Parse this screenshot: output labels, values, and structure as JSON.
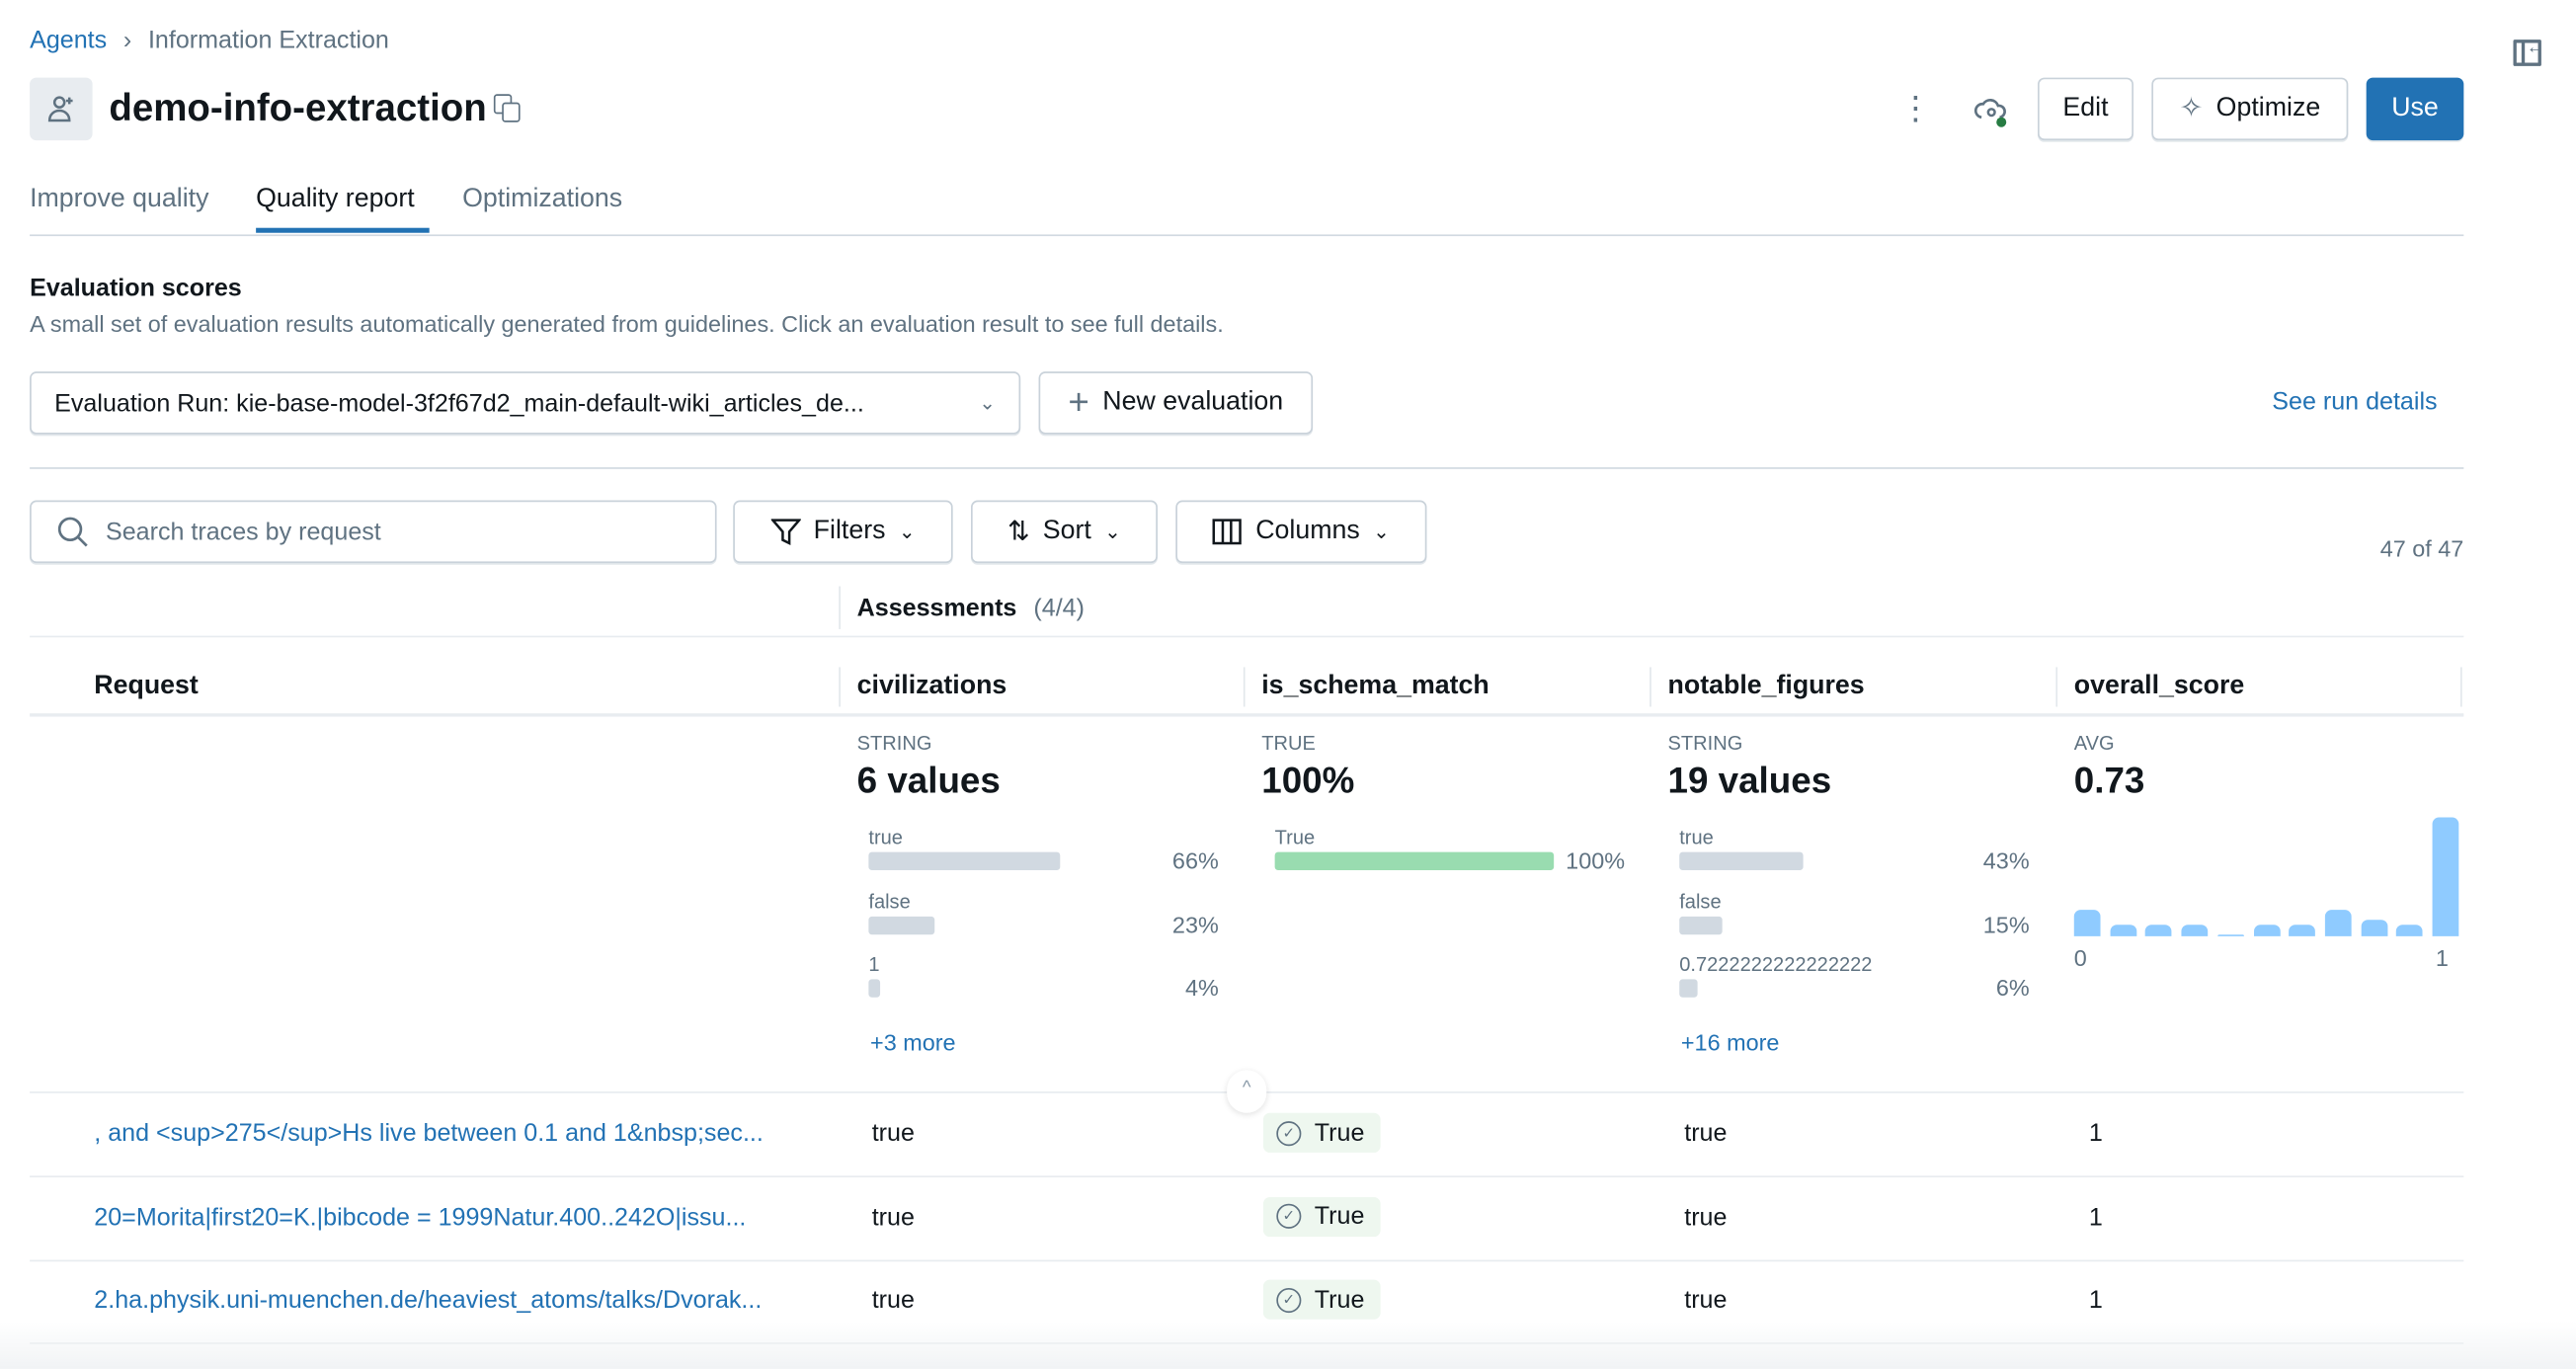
{
  "breadcrumb": {
    "root": "Agents",
    "current": "Information Extraction"
  },
  "header": {
    "title": "demo-info-extraction",
    "edit_label": "Edit",
    "optimize_label": "Optimize",
    "use_label": "Use",
    "accent": "#2272b4"
  },
  "tabs": [
    {
      "label": "Improve quality"
    },
    {
      "label": "Quality report",
      "active": true
    },
    {
      "label": "Optimizations"
    }
  ],
  "evaluation": {
    "heading": "Evaluation scores",
    "description": "A small set of evaluation results automatically generated from guidelines. Click an evaluation result to see full details.",
    "run_select": "Evaluation Run: kie-base-model-3f2f67d2_main-default-wiki_articles_de...",
    "new_eval_label": "New evaluation",
    "see_details": "See run details"
  },
  "toolbar": {
    "search_placeholder": "Search traces by request",
    "filters": "Filters",
    "sort": "Sort",
    "columns": "Columns",
    "count": "47 of 47"
  },
  "table": {
    "assessments_label": "Assessments",
    "assessments_count": "(4/4)",
    "headers": [
      "Request",
      "civilizations",
      "is_schema_match",
      "notable_figures",
      "overall_score"
    ],
    "summaries": {
      "civilizations": {
        "type": "STRING",
        "value": "6 values",
        "dist": [
          {
            "label": "true",
            "pct": "66%",
            "fraction": 0.66
          },
          {
            "label": "false",
            "pct": "23%",
            "fraction": 0.23
          },
          {
            "label": "1",
            "pct": "4%",
            "fraction": 0.04
          }
        ],
        "more": "+3 more"
      },
      "is_schema_match": {
        "type": "TRUE",
        "value": "100%",
        "dist": [
          {
            "label": "True",
            "pct": "100%",
            "fraction": 1.0
          }
        ],
        "color": "#99dcb0"
      },
      "notable_figures": {
        "type": "STRING",
        "value": "19 values",
        "dist": [
          {
            "label": "true",
            "pct": "43%",
            "fraction": 0.43
          },
          {
            "label": "false",
            "pct": "15%",
            "fraction": 0.15
          },
          {
            "label": "0.7222222222222222",
            "pct": "6%",
            "fraction": 0.06
          }
        ],
        "more": "+16 more"
      },
      "overall_score": {
        "type": "AVG",
        "value": "0.73",
        "histogram": {
          "counts": [
            5,
            2,
            2,
            2,
            0,
            2,
            2,
            5,
            3,
            2,
            22
          ],
          "min_label": "0",
          "max_label": "1",
          "color": "#8fcbff"
        }
      }
    },
    "rows": [
      {
        "request": ", and <sup>275</sup>Hs live between 0.1 and 1&nbsp;sec...",
        "civilizations": "true",
        "is_schema_match": "True",
        "notable_figures": "true",
        "overall_score": "1"
      },
      {
        "request": "20=Morita|first20=K.|bibcode = 1999Natur.400..242O|issu...",
        "civilizations": "true",
        "is_schema_match": "True",
        "notable_figures": "true",
        "overall_score": "1"
      },
      {
        "request": "2.ha.physik.uni-muenchen.de/heaviest_atoms/talks/Dvorak...",
        "civilizations": "true",
        "is_schema_match": "True",
        "notable_figures": "true",
        "overall_score": "1"
      }
    ]
  }
}
